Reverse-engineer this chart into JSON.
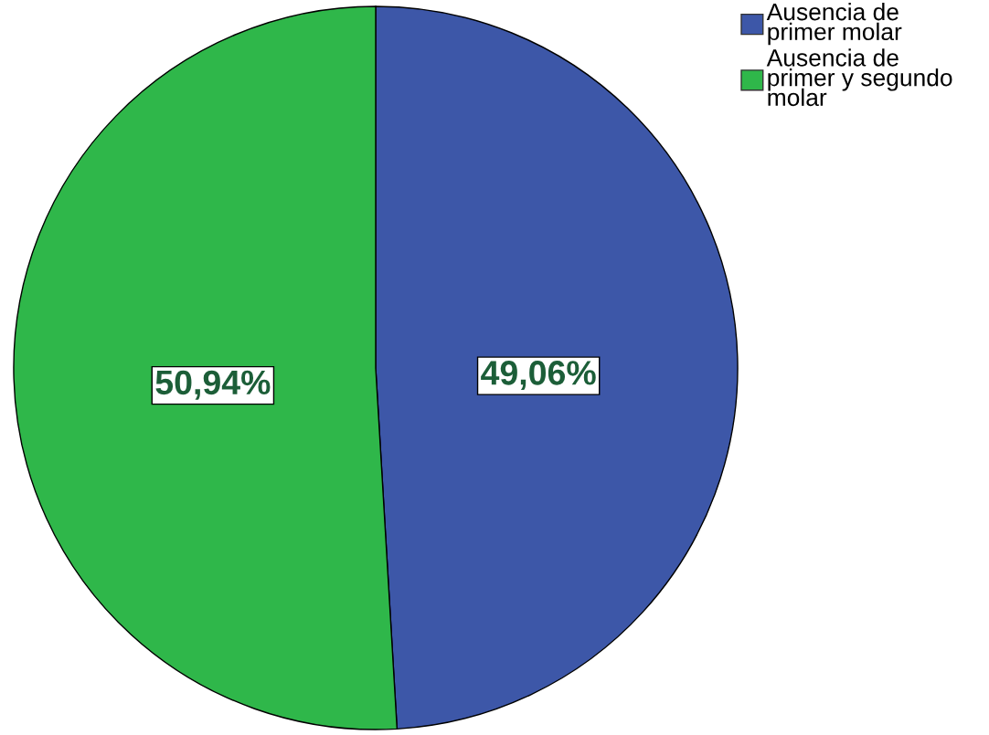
{
  "chart_data": {
    "type": "pie",
    "categories": [
      "Ausencia de primer molar",
      "Ausencia de primer y segundo molar"
    ],
    "values": [
      49.06,
      50.94
    ],
    "colors": [
      "#3d57a8",
      "#2fb74a"
    ],
    "value_labels": [
      "49,06%",
      "50,94%"
    ],
    "legend": "top right"
  }
}
